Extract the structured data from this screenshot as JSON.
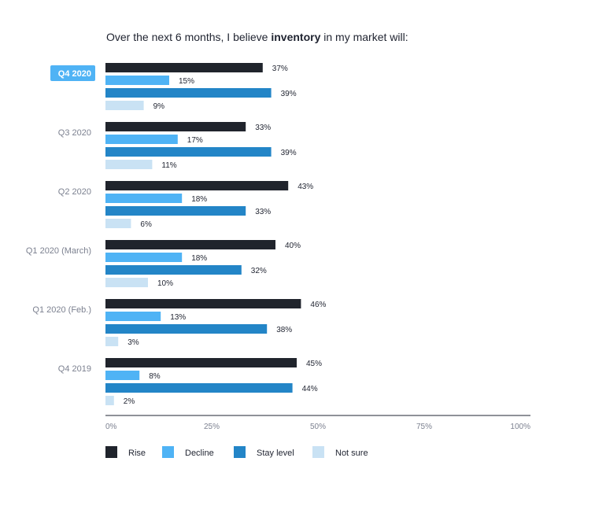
{
  "chart_data": {
    "type": "bar",
    "orientation": "horizontal",
    "title_prefix": "Over the next 6 months, I believe ",
    "title_bold": "inventory",
    "title_suffix": " in my market will:",
    "categories": [
      "Q4 2020",
      "Q3 2020",
      "Q2 2020",
      "Q1 2020 (March)",
      "Q1 2020 (Feb.)",
      "Q4 2019"
    ],
    "highlighted_category": "Q4 2020",
    "series": [
      {
        "name": "Rise",
        "color": "#20242c",
        "values": [
          37,
          33,
          43,
          40,
          46,
          45
        ]
      },
      {
        "name": "Decline",
        "color": "#4fb3f5",
        "values": [
          15,
          17,
          18,
          18,
          13,
          8
        ]
      },
      {
        "name": "Stay level",
        "color": "#2385c7",
        "values": [
          39,
          39,
          33,
          32,
          38,
          44
        ]
      },
      {
        "name": "Not sure",
        "color": "#c9e2f4",
        "values": [
          9,
          11,
          6,
          10,
          3,
          2
        ]
      }
    ],
    "value_suffix": "%",
    "x_ticks": [
      "0%",
      "25%",
      "50%",
      "75%",
      "100%"
    ],
    "xlim": [
      0,
      100
    ],
    "grid": false,
    "legend_position": "bottom-left",
    "highlight_color": "#4fb3f5"
  }
}
